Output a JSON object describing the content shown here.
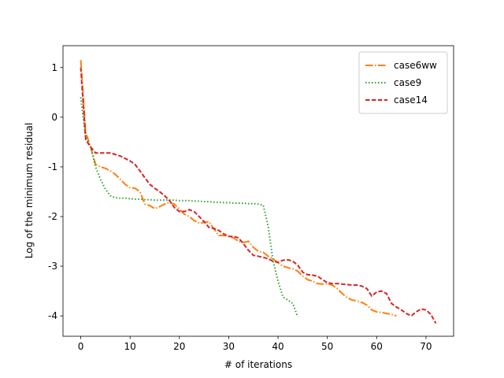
{
  "chart_data": {
    "type": "line",
    "xlabel": "# of iterations",
    "ylabel": "Log of the minimum residual",
    "xlim": [
      -3.6,
      75.6
    ],
    "ylim": [
      -4.41,
      1.44
    ],
    "xticks": [
      0,
      10,
      20,
      30,
      40,
      50,
      60,
      70
    ],
    "yticks": [
      1,
      0,
      -1,
      -2,
      -3,
      -4
    ],
    "legend": "upper right",
    "series": [
      {
        "name": "case6ww",
        "color": "#ff7f0e",
        "linestyle": "-.",
        "x": [
          0,
          1,
          2,
          3,
          4,
          5,
          6,
          7,
          8,
          9,
          10,
          11,
          12,
          13,
          14,
          15,
          16,
          17,
          18,
          19,
          20,
          21,
          22,
          23,
          24,
          25,
          26,
          27,
          28,
          29,
          30,
          31,
          32,
          33,
          34,
          35,
          36,
          37,
          38,
          39,
          40,
          41,
          42,
          43,
          44,
          45,
          46,
          47,
          48,
          49,
          50,
          51,
          52,
          53,
          54,
          55,
          56,
          57,
          58,
          59,
          60,
          61,
          62,
          63,
          64
        ],
        "values": [
          1.15,
          -0.3,
          -0.6,
          -0.95,
          -1.0,
          -1.03,
          -1.08,
          -1.15,
          -1.25,
          -1.35,
          -1.42,
          -1.43,
          -1.5,
          -1.75,
          -1.78,
          -1.84,
          -1.8,
          -1.75,
          -1.72,
          -1.75,
          -1.85,
          -1.95,
          -2.0,
          -2.08,
          -2.13,
          -2.12,
          -2.1,
          -2.25,
          -2.38,
          -2.38,
          -2.4,
          -2.43,
          -2.5,
          -2.52,
          -2.5,
          -2.62,
          -2.7,
          -2.72,
          -2.8,
          -2.85,
          -2.93,
          -3.0,
          -3.03,
          -3.05,
          -3.1,
          -3.2,
          -3.27,
          -3.3,
          -3.35,
          -3.36,
          -3.35,
          -3.38,
          -3.45,
          -3.55,
          -3.63,
          -3.68,
          -3.7,
          -3.73,
          -3.78,
          -3.88,
          -3.92,
          -3.93,
          -3.95,
          -3.97,
          -4.0
        ]
      },
      {
        "name": "case9",
        "color": "#2ca02c",
        "linestyle": ":",
        "x": [
          0,
          1,
          2,
          3,
          4,
          5,
          6,
          7,
          8,
          9,
          10,
          11,
          12,
          13,
          14,
          15,
          16,
          17,
          18,
          19,
          20,
          21,
          22,
          23,
          24,
          25,
          26,
          27,
          28,
          29,
          30,
          31,
          32,
          33,
          34,
          35,
          36,
          37,
          38,
          39,
          40,
          41,
          42,
          43,
          44
        ],
        "values": [
          0.4,
          -0.4,
          -0.6,
          -1.0,
          -1.25,
          -1.45,
          -1.58,
          -1.62,
          -1.63,
          -1.63,
          -1.64,
          -1.65,
          -1.65,
          -1.66,
          -1.66,
          -1.67,
          -1.67,
          -1.67,
          -1.67,
          -1.67,
          -1.68,
          -1.68,
          -1.68,
          -1.69,
          -1.69,
          -1.7,
          -1.7,
          -1.71,
          -1.71,
          -1.72,
          -1.72,
          -1.73,
          -1.73,
          -1.73,
          -1.74,
          -1.74,
          -1.75,
          -1.77,
          -2.2,
          -2.9,
          -3.3,
          -3.62,
          -3.68,
          -3.75,
          -4.02
        ]
      },
      {
        "name": "case14",
        "color": "#d62728",
        "linestyle": "--",
        "x": [
          0,
          1,
          2,
          3,
          4,
          5,
          6,
          7,
          8,
          9,
          10,
          11,
          12,
          13,
          14,
          15,
          16,
          17,
          18,
          19,
          20,
          21,
          22,
          23,
          24,
          25,
          26,
          27,
          28,
          29,
          30,
          31,
          32,
          33,
          34,
          35,
          36,
          37,
          38,
          39,
          40,
          41,
          42,
          43,
          44,
          45,
          46,
          47,
          48,
          49,
          50,
          51,
          52,
          53,
          54,
          55,
          56,
          57,
          58,
          59,
          60,
          61,
          62,
          63,
          64,
          65,
          66,
          67,
          68,
          69,
          70,
          71,
          72
        ],
        "values": [
          1.0,
          -0.45,
          -0.6,
          -0.72,
          -0.72,
          -0.72,
          -0.72,
          -0.75,
          -0.78,
          -0.83,
          -0.88,
          -0.95,
          -1.08,
          -1.22,
          -1.35,
          -1.43,
          -1.5,
          -1.58,
          -1.68,
          -1.82,
          -1.9,
          -1.9,
          -1.86,
          -1.9,
          -2.0,
          -2.1,
          -2.22,
          -2.24,
          -2.28,
          -2.35,
          -2.4,
          -2.4,
          -2.43,
          -2.55,
          -2.68,
          -2.78,
          -2.8,
          -2.82,
          -2.85,
          -2.9,
          -2.92,
          -2.88,
          -2.87,
          -2.9,
          -2.98,
          -3.12,
          -3.17,
          -3.18,
          -3.2,
          -3.27,
          -3.33,
          -3.35,
          -3.35,
          -3.36,
          -3.37,
          -3.38,
          -3.38,
          -3.4,
          -3.45,
          -3.6,
          -3.52,
          -3.5,
          -3.55,
          -3.75,
          -3.82,
          -3.88,
          -3.95,
          -4.0,
          -3.92,
          -3.86,
          -3.88,
          -3.97,
          -4.15
        ]
      }
    ]
  }
}
